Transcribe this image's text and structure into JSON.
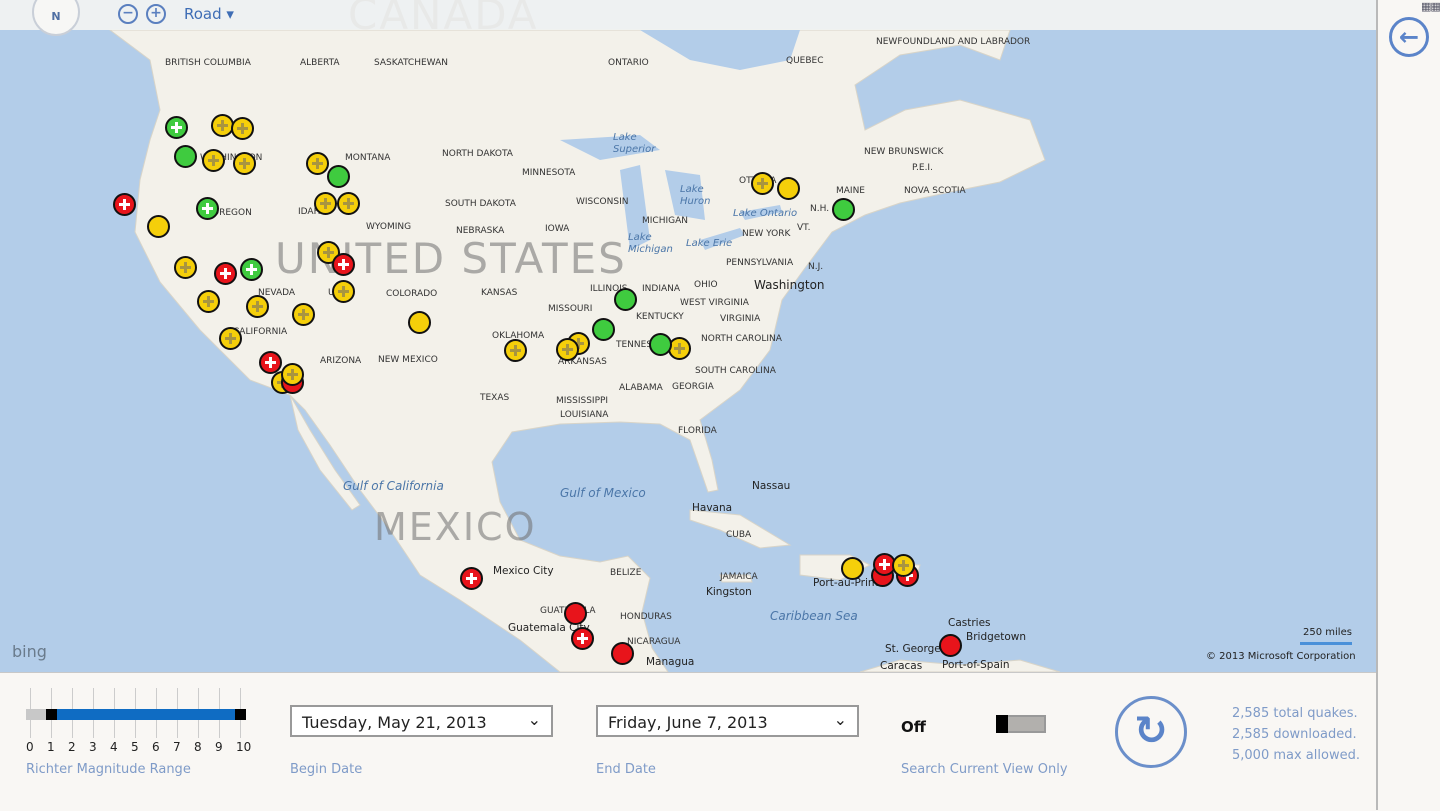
{
  "map": {
    "toolbar": {
      "compass_label": "N",
      "zoom_out": "−",
      "zoom_in": "+",
      "map_style": "Road ▾"
    },
    "country_labels": [
      "CANADA",
      "UNITED STATES",
      "MEXICO"
    ],
    "region_labels": [
      "British Columbia",
      "Alberta",
      "Saskatchewan",
      "Ontario",
      "Quebec",
      "Newfoundland and Labrador",
      "New Brunswick",
      "P.E.I.",
      "Nova Scotia",
      "Maine",
      "N.H.",
      "VT.",
      "Washington",
      "Oregon",
      "Idaho",
      "Montana",
      "Wyoming",
      "North Dakota",
      "South Dakota",
      "Minnesota",
      "Wisconsin",
      "Michigan",
      "Iowa",
      "Nebraska",
      "Illinois",
      "Indiana",
      "Ohio",
      "Pennsylvania",
      "New York",
      "N.J.",
      "Nevada",
      "Utah",
      "Colorado",
      "Kansas",
      "Missouri",
      "Kentucky",
      "West Virginia",
      "Virginia",
      "North Carolina",
      "Tennessee",
      "California",
      "Arizona",
      "New Mexico",
      "Oklahoma",
      "Arkansas",
      "South Carolina",
      "Alabama",
      "Georgia",
      "Mississippi",
      "Louisiana",
      "Texas",
      "Florida",
      "Ottawa",
      "Belize",
      "Honduras",
      "Nicaragua",
      "Guatemala",
      "Jamaica",
      "Cuba"
    ],
    "water_labels": [
      "Lake Superior",
      "Lake Huron",
      "Lake Michigan",
      "Lake Erie",
      "Lake Ontario",
      "Gulf of Mexico",
      "Gulf of California",
      "Caribbean Sea"
    ],
    "cities": [
      "Washington",
      "Havana",
      "Nassau",
      "Mexico City",
      "Kingston",
      "Port-au-Prince",
      "Guatemala City",
      "Managua",
      "Castries",
      "Bridgetown",
      "St. George's",
      "Port-of-Spain",
      "Caracas"
    ],
    "logo": "bing",
    "scale_label": "250 miles",
    "copyright": "© 2013 Microsoft Corporation",
    "marker_colors": {
      "high": "#e8141b",
      "medium": "#f5cf0a",
      "low": "#3fcb3f"
    }
  },
  "panel": {
    "magnitude": {
      "ticks": [
        "0",
        "1",
        "2",
        "3",
        "4",
        "5",
        "6",
        "7",
        "8",
        "9",
        "10"
      ],
      "range_min": 1,
      "range_max": 10,
      "label": "Richter Magnitude Range"
    },
    "begin_date": {
      "value": "Tuesday, May 21, 2013",
      "label": "Begin Date"
    },
    "end_date": {
      "value": "Friday, June 7, 2013",
      "label": "End Date"
    },
    "view_toggle": {
      "state": "Off",
      "label": "Search Current View Only"
    },
    "stats": [
      "2,585 total quakes.",
      "2,585 downloaded.",
      "5,000 max allowed."
    ]
  },
  "colors": {
    "accent": "#0f6cc3",
    "caption": "#7f9bc8",
    "ocean": "#b3cde9",
    "land": "#f3f1ea"
  }
}
